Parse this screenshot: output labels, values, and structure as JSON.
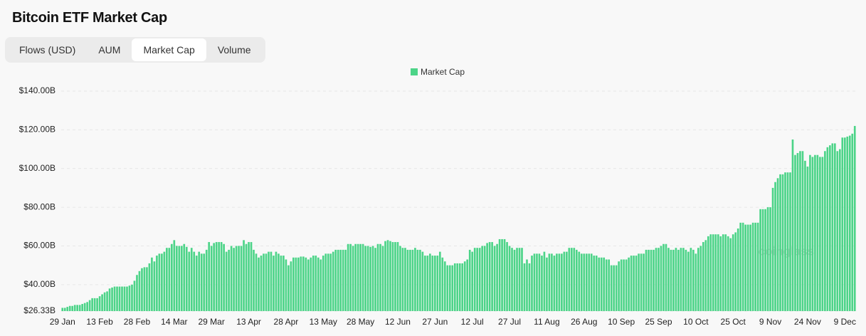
{
  "tabs": [
    "Flows (USD)",
    "AUM",
    "Market Cap",
    "Volume"
  ],
  "active_tab": "Market Cap",
  "chart_data": {
    "type": "bar",
    "title": "Bitcoin ETF Market Cap",
    "watermark": "coinglass",
    "categories": [
      "29 Jan",
      null,
      null,
      null,
      null,
      null,
      null,
      null,
      null,
      null,
      null,
      null,
      null,
      null,
      null,
      "13 Feb",
      null,
      null,
      null,
      null,
      null,
      null,
      null,
      null,
      null,
      null,
      null,
      null,
      null,
      null,
      "28 Feb",
      null,
      null,
      null,
      null,
      null,
      null,
      null,
      null,
      null,
      null,
      null,
      null,
      null,
      null,
      "14 Mar",
      null,
      null,
      null,
      null,
      null,
      null,
      null,
      null,
      null,
      null,
      null,
      null,
      null,
      null,
      "29 Mar",
      null,
      null,
      null,
      null,
      null,
      null,
      null,
      null,
      null,
      null,
      null,
      null,
      null,
      null,
      "13 Apr",
      null,
      null,
      null,
      null,
      null,
      null,
      null,
      null,
      null,
      null,
      null,
      null,
      null,
      null,
      "28 Apr",
      null,
      null,
      null,
      null,
      null,
      null,
      null,
      null,
      null,
      null,
      null,
      null,
      null,
      null,
      "13 May",
      null,
      null,
      null,
      null,
      null,
      null,
      null,
      null,
      null,
      null,
      null,
      null,
      null,
      null,
      "28 May",
      null,
      null,
      null,
      null,
      null,
      null,
      null,
      null,
      null,
      null,
      null,
      null,
      null,
      null,
      "12 Jun",
      null,
      null,
      null,
      null,
      null,
      null,
      null,
      null,
      null,
      null,
      null,
      null,
      null,
      null,
      "27 Jun",
      null,
      null,
      null,
      null,
      null,
      null,
      null,
      null,
      null,
      null,
      null,
      null,
      null,
      null,
      "12 Jul",
      null,
      null,
      null,
      null,
      null,
      null,
      null,
      null,
      null,
      null,
      null,
      null,
      null,
      null,
      "27 Jul",
      null,
      null,
      null,
      null,
      null,
      null,
      null,
      null,
      null,
      null,
      null,
      null,
      null,
      null,
      "11 Aug",
      null,
      null,
      null,
      null,
      null,
      null,
      null,
      null,
      null,
      null,
      null,
      null,
      null,
      null,
      "26 Aug",
      null,
      null,
      null,
      null,
      null,
      null,
      null,
      null,
      null,
      null,
      null,
      null,
      null,
      null,
      "10 Sep",
      null,
      null,
      null,
      null,
      null,
      null,
      null,
      null,
      null,
      null,
      null,
      null,
      null,
      null,
      "25 Sep",
      null,
      null,
      null,
      null,
      null,
      null,
      null,
      null,
      null,
      null,
      null,
      null,
      null,
      null,
      "10 Oct",
      null,
      null,
      null,
      null,
      null,
      null,
      null,
      null,
      null,
      null,
      null,
      null,
      null,
      null,
      "25 Oct",
      null,
      null,
      null,
      null,
      null,
      null,
      null,
      null,
      null,
      null,
      null,
      null,
      null,
      null,
      "9 Nov",
      null,
      null,
      null,
      null,
      null,
      null,
      null,
      null,
      null,
      null,
      null,
      null,
      null,
      null,
      "24 Nov",
      null,
      null,
      null,
      null,
      null,
      null,
      null,
      null,
      null,
      null,
      null,
      null,
      null,
      null,
      "9 Dec",
      null,
      null,
      null,
      null
    ],
    "series": [
      {
        "name": "Market Cap",
        "color": "#4cd488",
        "values": [
          28,
          28,
          28.5,
          29,
          29,
          29.5,
          29.5,
          29.5,
          30,
          30.5,
          31,
          32,
          33,
          33,
          33,
          34,
          35,
          36,
          36.5,
          38,
          38.5,
          39,
          39,
          39,
          39,
          39,
          39,
          39.5,
          40,
          42,
          45,
          47,
          48.5,
          49,
          49,
          51,
          54,
          52,
          55,
          56,
          56,
          57,
          59,
          59,
          61,
          63,
          60,
          60,
          60,
          61,
          59.5,
          57,
          59,
          57,
          55,
          57,
          56,
          56,
          58,
          62,
          60,
          61.5,
          62,
          62,
          62,
          61,
          57,
          58,
          60,
          59,
          60,
          60,
          60,
          63,
          61,
          62,
          62,
          58,
          56,
          54,
          55,
          56,
          56,
          57,
          57,
          55,
          57,
          56,
          55,
          55,
          53,
          50,
          52,
          54,
          54,
          54,
          54.5,
          54.5,
          54,
          53,
          54,
          55,
          55,
          54,
          53,
          55,
          56,
          56,
          56,
          57,
          58,
          58,
          58,
          58,
          58,
          61,
          61,
          60,
          61,
          61,
          61,
          61,
          60,
          60,
          59.5,
          60,
          59,
          61,
          61,
          60,
          62.5,
          63,
          62.5,
          62,
          62,
          62,
          60,
          59,
          59,
          58,
          58,
          58,
          59,
          58,
          58,
          57,
          55,
          55,
          56,
          55,
          55,
          55,
          57,
          54,
          52,
          50,
          50,
          50,
          51,
          51,
          51,
          51,
          52,
          53,
          58,
          57,
          59,
          59,
          59,
          60,
          60,
          61.5,
          62,
          62,
          60,
          61,
          63.5,
          63.5,
          63.5,
          62,
          60,
          59,
          58,
          59,
          59,
          59,
          51,
          53,
          51,
          55,
          56,
          56,
          56,
          55,
          57,
          54,
          56,
          56,
          55,
          56,
          56,
          56,
          57,
          57,
          59,
          59,
          59,
          58,
          57,
          56,
          56,
          56,
          56,
          56,
          55,
          55,
          54,
          54,
          54,
          53,
          53,
          50,
          50,
          50,
          52,
          53,
          53,
          53,
          54,
          55,
          55,
          55,
          56,
          56,
          56,
          58,
          58,
          58,
          58,
          59,
          59,
          60,
          61,
          61,
          59,
          58,
          58,
          59,
          58,
          59,
          59,
          58,
          57,
          59,
          58,
          56,
          59,
          60,
          62,
          63,
          65,
          66,
          66,
          66,
          66,
          65,
          66,
          66,
          65,
          64,
          66,
          67,
          69,
          72,
          72,
          71,
          71,
          71,
          72,
          72,
          72,
          79,
          79,
          79,
          80,
          80,
          90,
          93,
          95,
          97,
          97,
          98,
          98,
          98,
          115,
          107,
          108,
          109,
          109,
          104,
          101,
          107,
          106,
          107,
          107,
          106,
          106,
          109,
          111,
          112,
          113,
          113,
          109,
          110,
          116,
          116,
          116.5,
          117,
          118,
          122
        ]
      }
    ],
    "ylim": [
      26.33,
      140
    ],
    "yticks": [
      {
        "value": 26.33,
        "label": "$26.33B"
      },
      {
        "value": 40,
        "label": "$40.00B"
      },
      {
        "value": 60,
        "label": "$60.00B"
      },
      {
        "value": 80,
        "label": "$80.00B"
      },
      {
        "value": 100,
        "label": "$100.00B"
      },
      {
        "value": 120,
        "label": "$120.00B"
      },
      {
        "value": 140,
        "label": "$140.00B"
      }
    ],
    "grid": true
  }
}
